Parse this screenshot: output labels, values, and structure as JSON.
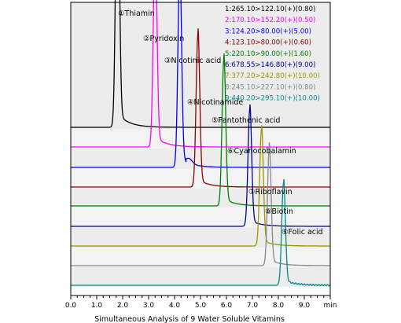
{
  "chart_data": {
    "type": "line",
    "subtype": "stacked-chromatograms",
    "title": "Simultaneous Analysis of 9 Water Soluble Vitamins",
    "xlabel": "min",
    "xlim": [
      0.0,
      10.0
    ],
    "x_ticks": [
      "0.0",
      "1.0",
      "2.0",
      "3.0",
      "4.0",
      "5.0",
      "6.0",
      "7.0",
      "8.0",
      "9.0"
    ],
    "grid": false,
    "legend_position": "top-right",
    "legend": [
      {
        "text": "1:265.10>122.10(+)(0.80)",
        "color": "#000000"
      },
      {
        "text": "2:170.10>152.20(+)(0.50)",
        "color": "#ff00ff"
      },
      {
        "text": "3:124.20>80.00(+)(5.00)",
        "color": "#0000ff"
      },
      {
        "text": "4:123.10>80.00(+)(0.60)",
        "color": "#8b0000"
      },
      {
        "text": "5:220.10>90.00(+)(1.60)",
        "color": "#008000"
      },
      {
        "text": "6:678.55>146.80(+)(9.00)",
        "color": "#00008b"
      },
      {
        "text": "7:377.20>242.80(+)(10.00)",
        "color": "#999900"
      },
      {
        "text": "8:245.10>227.10(+)(0.80)",
        "color": "#888888"
      },
      {
        "text": "9:440.20>295.10(+)(10.00)",
        "color": "#008b8b"
      }
    ],
    "series": [
      {
        "name": "Thiamin",
        "number": "①",
        "color": "#000000",
        "retention_time": 1.8,
        "peak_height": 0.97
      },
      {
        "name": "Pyridoxin",
        "number": "②",
        "color": "#ff00ff",
        "retention_time": 3.25,
        "peak_height": 0.7
      },
      {
        "name": "Nicotinic acid",
        "number": "③",
        "color": "#0000ff",
        "retention_time": 4.2,
        "peak_height": 0.68
      },
      {
        "name": "Nicotinamide",
        "number": "④",
        "color": "#8b0000",
        "retention_time": 4.9,
        "peak_height": 0.52
      },
      {
        "name": "Pantothenic acid",
        "number": "⑤",
        "color": "#008000",
        "retention_time": 5.9,
        "peak_height": 0.5
      },
      {
        "name": "Cyanocobalamin",
        "number": "⑥",
        "color": "#00008b",
        "retention_time": 6.9,
        "peak_height": 0.4
      },
      {
        "name": "Riboflavin",
        "number": "⑦",
        "color": "#999900",
        "retention_time": 7.35,
        "peak_height": 0.4
      },
      {
        "name": "Biotin",
        "number": "⑧",
        "color": "#888888",
        "retention_time": 7.65,
        "peak_height": 0.4
      },
      {
        "name": "Folic acid",
        "number": "⑨",
        "color": "#008b8b",
        "retention_time": 8.2,
        "peak_height": 0.35
      }
    ]
  }
}
